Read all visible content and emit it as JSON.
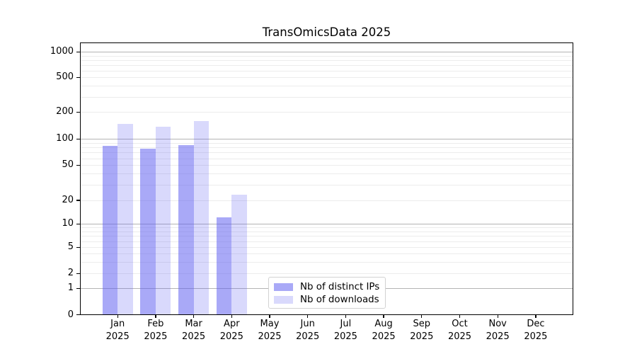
{
  "title": "TransOmicsData 2025",
  "chart_data": {
    "type": "bar",
    "title": "TransOmicsData 2025",
    "categories": [
      "Jan 2025",
      "Feb 2025",
      "Mar 2025",
      "Apr 2025",
      "May 2025",
      "Jun 2025",
      "Jul 2025",
      "Aug 2025",
      "Sep 2025",
      "Oct 2025",
      "Nov 2025",
      "Dec 2025"
    ],
    "series": [
      {
        "name": "Nb of distinct IPs",
        "color": "rgba(90,90,240,0.52)",
        "values": [
          83,
          77,
          85,
          12,
          null,
          null,
          null,
          null,
          null,
          null,
          null,
          null
        ]
      },
      {
        "name": "Nb of downloads",
        "color": "rgba(90,90,240,0.23)",
        "values": [
          148,
          138,
          158,
          23,
          null,
          null,
          null,
          null,
          null,
          null,
          null,
          null
        ]
      }
    ],
    "yscale": "symlog",
    "ytick_values": [
      1000,
      500,
      200,
      100,
      50,
      20,
      10,
      5,
      2,
      1,
      0
    ],
    "ytick_labels": [
      "1000",
      "500",
      "200",
      "100",
      "50",
      "20",
      "10",
      "5",
      "2",
      "1",
      "0"
    ],
    "ylim": [
      0,
      1400
    ],
    "grid": true,
    "legend_position": "inside lower-center-left"
  },
  "x_axis": {
    "months": [
      "Jan",
      "Feb",
      "Mar",
      "Apr",
      "May",
      "Jun",
      "Jul",
      "Aug",
      "Sep",
      "Oct",
      "Nov",
      "Dec"
    ],
    "year": "2025"
  },
  "legend": {
    "items": [
      {
        "label": "Nb of distinct IPs",
        "color": "rgba(90,90,240,0.52)"
      },
      {
        "label": "Nb of downloads",
        "color": "rgba(90,90,240,0.23)"
      }
    ]
  },
  "colors": {
    "ip_bar": "#a9a9f7",
    "download_bar": "#dadaf9",
    "major_gridline": "#b4b4b4",
    "minor_gridline": "#ececec",
    "axis": "#000000",
    "background": "#ffffff"
  }
}
